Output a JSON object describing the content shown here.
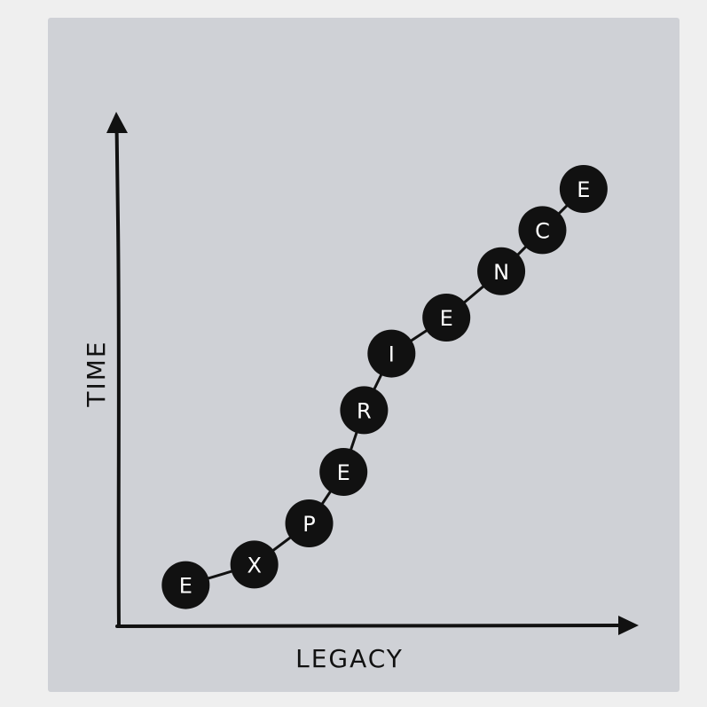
{
  "chart_data": {
    "type": "line",
    "title": "",
    "xlabel": "LEGACY",
    "ylabel": "TIME",
    "series": [
      {
        "name": "",
        "points": [
          {
            "label": "E",
            "x": 1.0,
            "y": 0.8
          },
          {
            "label": "X",
            "x": 2.0,
            "y": 1.2
          },
          {
            "label": "P",
            "x": 2.8,
            "y": 2.0
          },
          {
            "label": "E",
            "x": 3.3,
            "y": 3.0
          },
          {
            "label": "R",
            "x": 3.6,
            "y": 4.2
          },
          {
            "label": "I",
            "x": 4.0,
            "y": 5.3
          },
          {
            "label": "E",
            "x": 4.8,
            "y": 6.0
          },
          {
            "label": "N",
            "x": 5.6,
            "y": 6.9
          },
          {
            "label": "C",
            "x": 6.2,
            "y": 7.7
          },
          {
            "label": "E",
            "x": 6.8,
            "y": 8.5
          }
        ]
      }
    ],
    "xlim": [
      0,
      7.5
    ],
    "ylim": [
      0,
      10
    ],
    "grid": false,
    "colors": {
      "panel": "#cfd1d6",
      "ink": "#111111",
      "dot_text": "#ffffff"
    }
  }
}
